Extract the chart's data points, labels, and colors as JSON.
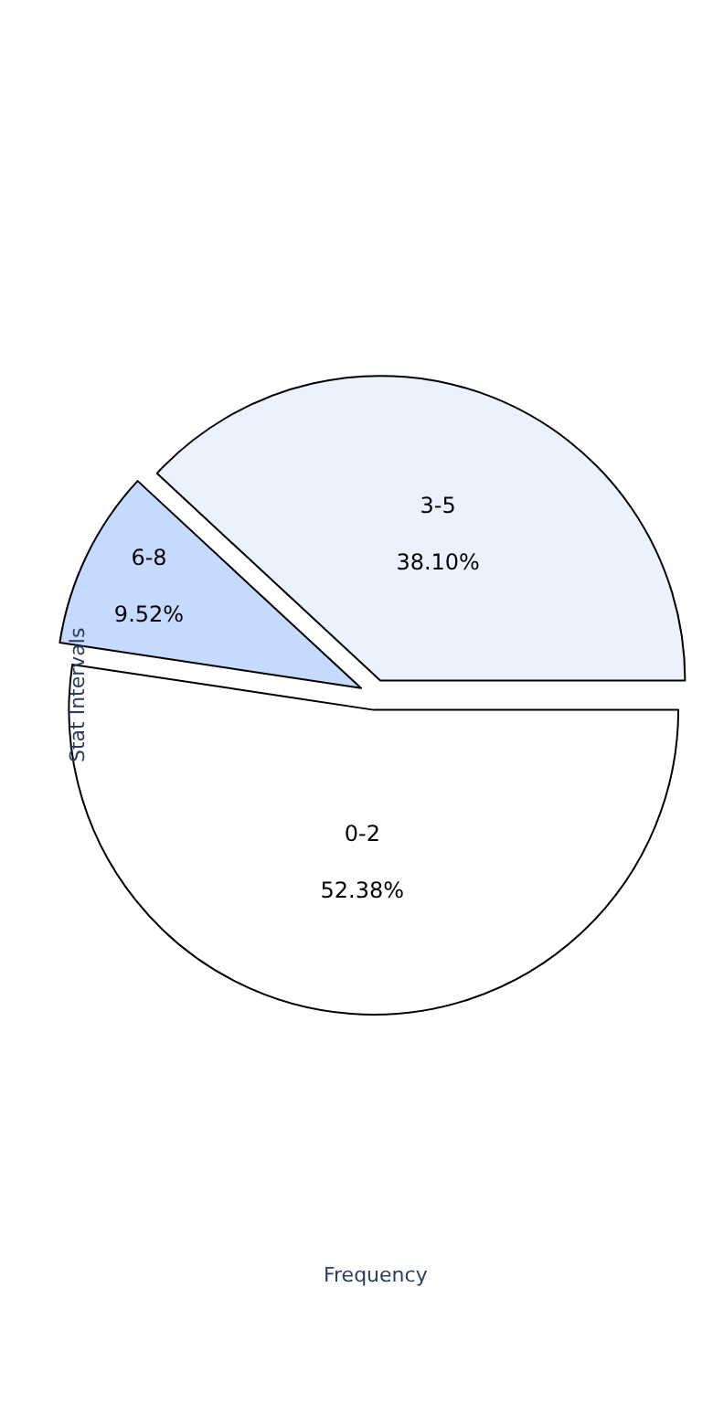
{
  "chart_data": {
    "type": "pie",
    "xlabel": "Frequency",
    "ylabel": "Stat Intervals",
    "categories": [
      "0-2",
      "3-5",
      "6-8"
    ],
    "values": [
      52.38,
      38.1,
      9.52
    ],
    "value_labels": [
      "52.38%",
      "38.10%",
      "9.52%"
    ],
    "colors": [
      "#ffffff",
      "#ebf1fd",
      "#c6d9ff"
    ],
    "legend": false
  }
}
